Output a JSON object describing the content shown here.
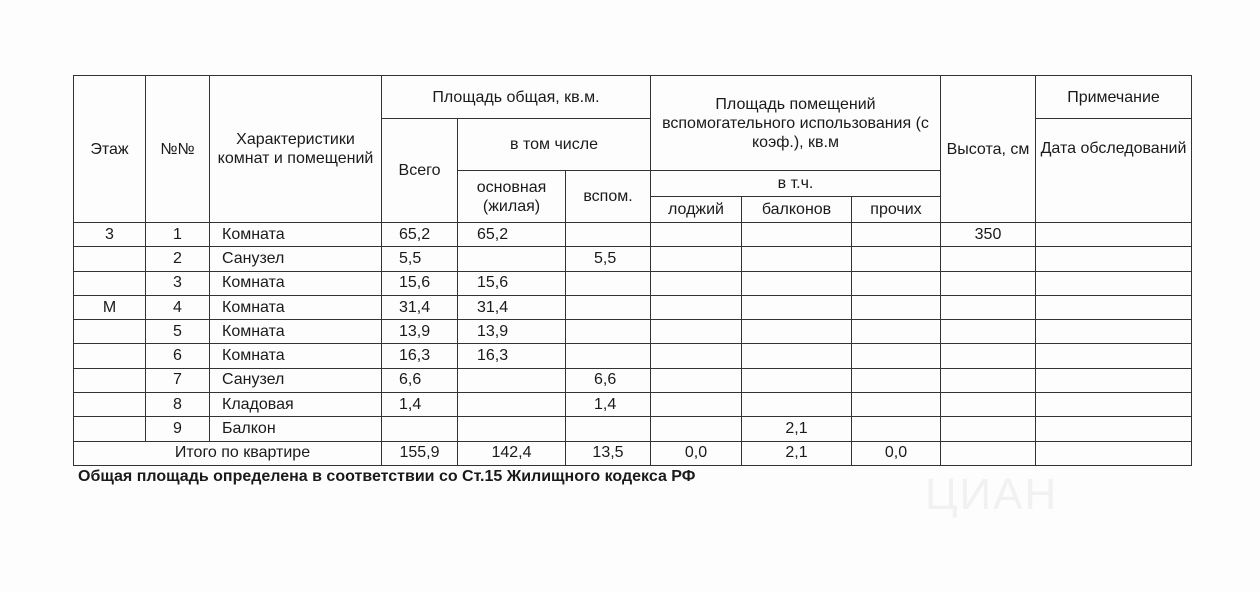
{
  "header": {
    "floor": "Этаж",
    "number": "№№",
    "characteristics": "Характеристики комнат и помещений",
    "total_area": "Площадь общая, кв.м.",
    "total": "Всего",
    "including": "в том числе",
    "main_living": "основная (жилая)",
    "aux": "вспом.",
    "aux_premises": "Площадь помещений вспомогательного использования (с коэф.), кв.м",
    "incl_short": "в т.ч.",
    "loggias": "лоджий",
    "balconies": "балконов",
    "other": "прочих",
    "height": "Высота, см",
    "remark": "Примечание",
    "survey_date": "Дата обследований"
  },
  "rows": [
    {
      "floor": "3",
      "no": "1",
      "name": "Комната",
      "total": "65,2",
      "main": "65,2",
      "aux": "",
      "loggia": "",
      "balcony": "",
      "other": "",
      "height": "350"
    },
    {
      "floor": "",
      "no": "2",
      "name": "Санузел",
      "total": "5,5",
      "main": "",
      "aux": "5,5",
      "loggia": "",
      "balcony": "",
      "other": "",
      "height": ""
    },
    {
      "floor": "",
      "no": "3",
      "name": "Комната",
      "total": "15,6",
      "main": "15,6",
      "aux": "",
      "loggia": "",
      "balcony": "",
      "other": "",
      "height": ""
    },
    {
      "floor": "М",
      "no": "4",
      "name": "Комната",
      "total": "31,4",
      "main": "31,4",
      "aux": "",
      "loggia": "",
      "balcony": "",
      "other": "",
      "height": ""
    },
    {
      "floor": "",
      "no": "5",
      "name": "Комната",
      "total": "13,9",
      "main": "13,9",
      "aux": "",
      "loggia": "",
      "balcony": "",
      "other": "",
      "height": ""
    },
    {
      "floor": "",
      "no": "6",
      "name": "Комната",
      "total": "16,3",
      "main": "16,3",
      "aux": "",
      "loggia": "",
      "balcony": "",
      "other": "",
      "height": ""
    },
    {
      "floor": "",
      "no": "7",
      "name": "Санузел",
      "total": "6,6",
      "main": "",
      "aux": "6,6",
      "loggia": "",
      "balcony": "",
      "other": "",
      "height": ""
    },
    {
      "floor": "",
      "no": "8",
      "name": "Кладовая",
      "total": "1,4",
      "main": "",
      "aux": "1,4",
      "loggia": "",
      "balcony": "",
      "other": "",
      "height": ""
    },
    {
      "floor": "",
      "no": "9",
      "name": "Балкон",
      "total": "",
      "main": "",
      "aux": "",
      "loggia": "",
      "balcony": "2,1",
      "other": "",
      "height": ""
    }
  ],
  "totals": {
    "label": "Итого по квартире",
    "total": "155,9",
    "main": "142,4",
    "aux": "13,5",
    "loggia": "0,0",
    "balcony": "2,1",
    "other": "0,0"
  },
  "footnote": "Общая площадь определена в соответствии со Ст.15 Жилищного кодекса РФ",
  "watermark": "циан"
}
